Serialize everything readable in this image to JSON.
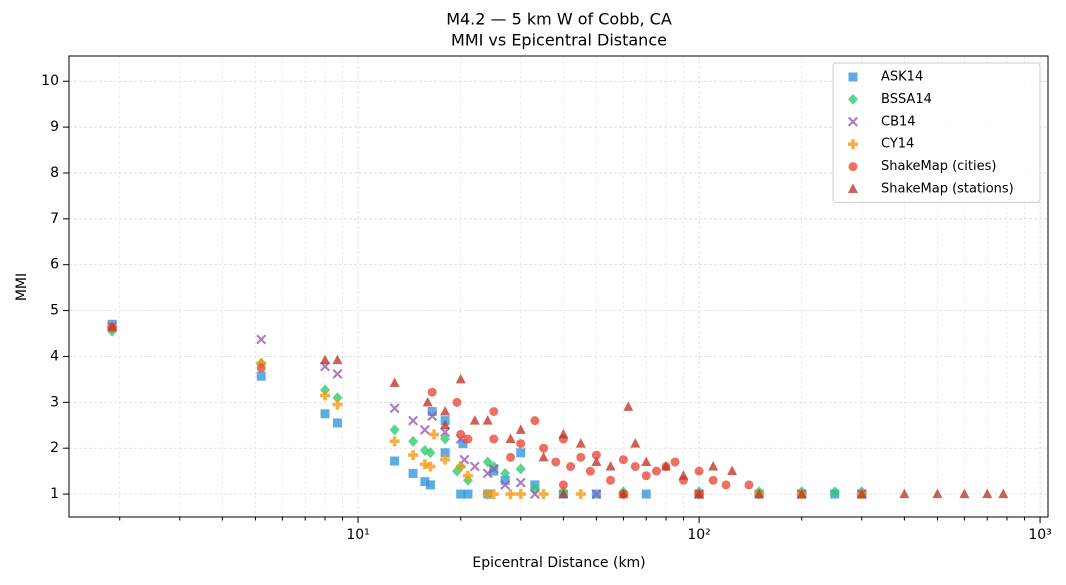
{
  "chart_data": {
    "type": "scatter",
    "title": "M4.2 — 5 km W of Cobb, CA",
    "subtitle": "MMI vs Epicentral Distance",
    "x_label": "Epicentral Distance (km)",
    "y_label": "MMI",
    "x_scale": "log",
    "xlim": [
      1.42,
      1055
    ],
    "ylim": [
      0.5,
      10.55
    ],
    "xticks": [
      {
        "value": 10,
        "label": "10¹"
      },
      {
        "value": 100,
        "label": "10²"
      },
      {
        "value": 1000,
        "label": "10³"
      }
    ],
    "xminorticks": [
      2,
      3,
      4,
      5,
      6,
      7,
      8,
      9,
      20,
      30,
      40,
      50,
      60,
      70,
      80,
      90,
      200,
      300,
      400,
      500,
      600,
      700,
      800,
      900
    ],
    "yticks": [
      1,
      2,
      3,
      4,
      5,
      6,
      7,
      8,
      9,
      10
    ],
    "grid": true,
    "legend": "upper right",
    "series": [
      {
        "name": "ASK14",
        "color": "#3498db",
        "marker": "square",
        "x": [
          1.9,
          5.2,
          8,
          8.7,
          12.8,
          14.5,
          15.7,
          16.3,
          16.5,
          18,
          18,
          20,
          20.3,
          21,
          24,
          25,
          27,
          30,
          33,
          40,
          50,
          70,
          100,
          150,
          200,
          250,
          300
        ],
        "values": [
          4.7,
          3.57,
          2.75,
          2.55,
          1.72,
          1.45,
          1.27,
          1.2,
          2.8,
          1.9,
          2.6,
          1.0,
          2.1,
          1.0,
          1.0,
          1.5,
          1.3,
          1.9,
          1.2,
          1.0,
          1.0,
          1.0,
          1.0,
          1.0,
          1.0,
          1.0,
          1.0
        ]
      },
      {
        "name": "BSSA14",
        "color": "#2ecc71",
        "marker": "diamond",
        "x": [
          1.9,
          5.2,
          8,
          8.7,
          12.8,
          14.5,
          15.7,
          16.3,
          18,
          19.5,
          20,
          21,
          24,
          25,
          27,
          30,
          33,
          40,
          60,
          100,
          150,
          200,
          250,
          300
        ],
        "values": [
          4.55,
          3.85,
          3.27,
          3.1,
          2.4,
          2.15,
          1.95,
          1.9,
          2.2,
          1.5,
          1.6,
          1.3,
          1.7,
          1.6,
          1.45,
          1.55,
          1.1,
          1.05,
          1.05,
          1.05,
          1.05,
          1.05,
          1.05,
          1.05
        ]
      },
      {
        "name": "CB14",
        "color": "#9b59b6",
        "marker": "x",
        "x": [
          1.9,
          5.2,
          8,
          8.7,
          12.8,
          14.5,
          15.7,
          16.5,
          18,
          20,
          20.5,
          22,
          24,
          25,
          27,
          30,
          33,
          50,
          100,
          200,
          300
        ],
        "values": [
          4.65,
          4.37,
          3.78,
          3.62,
          2.87,
          2.6,
          2.4,
          2.7,
          2.35,
          2.2,
          1.75,
          1.6,
          1.45,
          1.55,
          1.2,
          1.25,
          1.0,
          1.0,
          1.0,
          1.0,
          1.0
        ]
      },
      {
        "name": "CY14",
        "color": "#f39c12",
        "marker": "plus",
        "x": [
          1.9,
          5.2,
          8,
          8.7,
          12.8,
          14.5,
          15.7,
          16.3,
          16.7,
          18,
          20,
          21,
          24,
          25,
          28,
          30,
          35,
          45,
          60,
          100,
          150,
          200,
          300
        ],
        "values": [
          4.65,
          3.85,
          3.15,
          2.95,
          2.15,
          1.85,
          1.65,
          1.6,
          2.3,
          1.75,
          1.6,
          1.4,
          1.0,
          1.0,
          1.0,
          1.0,
          1.0,
          1.0,
          1.0,
          1.0,
          1.0,
          1.0,
          1.0
        ]
      },
      {
        "name": "ShakeMap (cities)",
        "color": "#e74c3c",
        "marker": "circle",
        "x": [
          1.9,
          5.2,
          16.5,
          19.5,
          20,
          21,
          25,
          25,
          28,
          30,
          33,
          35,
          38,
          40,
          42,
          45,
          48,
          50,
          55,
          60,
          65,
          70,
          75,
          80,
          85,
          90,
          100,
          110,
          120,
          140,
          40,
          60,
          100
        ],
        "values": [
          4.62,
          3.75,
          3.22,
          3.0,
          2.3,
          2.2,
          2.8,
          2.2,
          1.8,
          2.1,
          2.6,
          2.0,
          1.7,
          2.2,
          1.6,
          1.8,
          1.5,
          1.85,
          1.3,
          1.75,
          1.6,
          1.4,
          1.5,
          1.6,
          1.7,
          1.3,
          1.5,
          1.3,
          1.2,
          1.2,
          1.2,
          1.0,
          1.0
        ]
      },
      {
        "name": "ShakeMap (stations)",
        "color": "#c0392b",
        "marker": "triangle",
        "x": [
          1.9,
          8,
          8.7,
          12.8,
          16,
          18,
          18,
          20,
          22,
          24,
          28,
          30,
          35,
          40,
          45,
          50,
          55,
          62,
          65,
          70,
          80,
          90,
          110,
          125,
          40,
          60,
          100,
          150,
          200,
          300,
          400,
          500,
          600,
          700,
          780
        ],
        "values": [
          4.65,
          3.92,
          3.92,
          3.42,
          3.0,
          2.8,
          2.5,
          3.5,
          2.6,
          2.6,
          2.2,
          2.4,
          1.8,
          2.3,
          2.1,
          1.7,
          1.6,
          2.9,
          2.1,
          1.7,
          1.6,
          1.4,
          1.6,
          1.5,
          1.0,
          1.0,
          1.0,
          1.0,
          1.0,
          1.0,
          1.0,
          1.0,
          1.0,
          1.0,
          1.0
        ]
      }
    ]
  }
}
